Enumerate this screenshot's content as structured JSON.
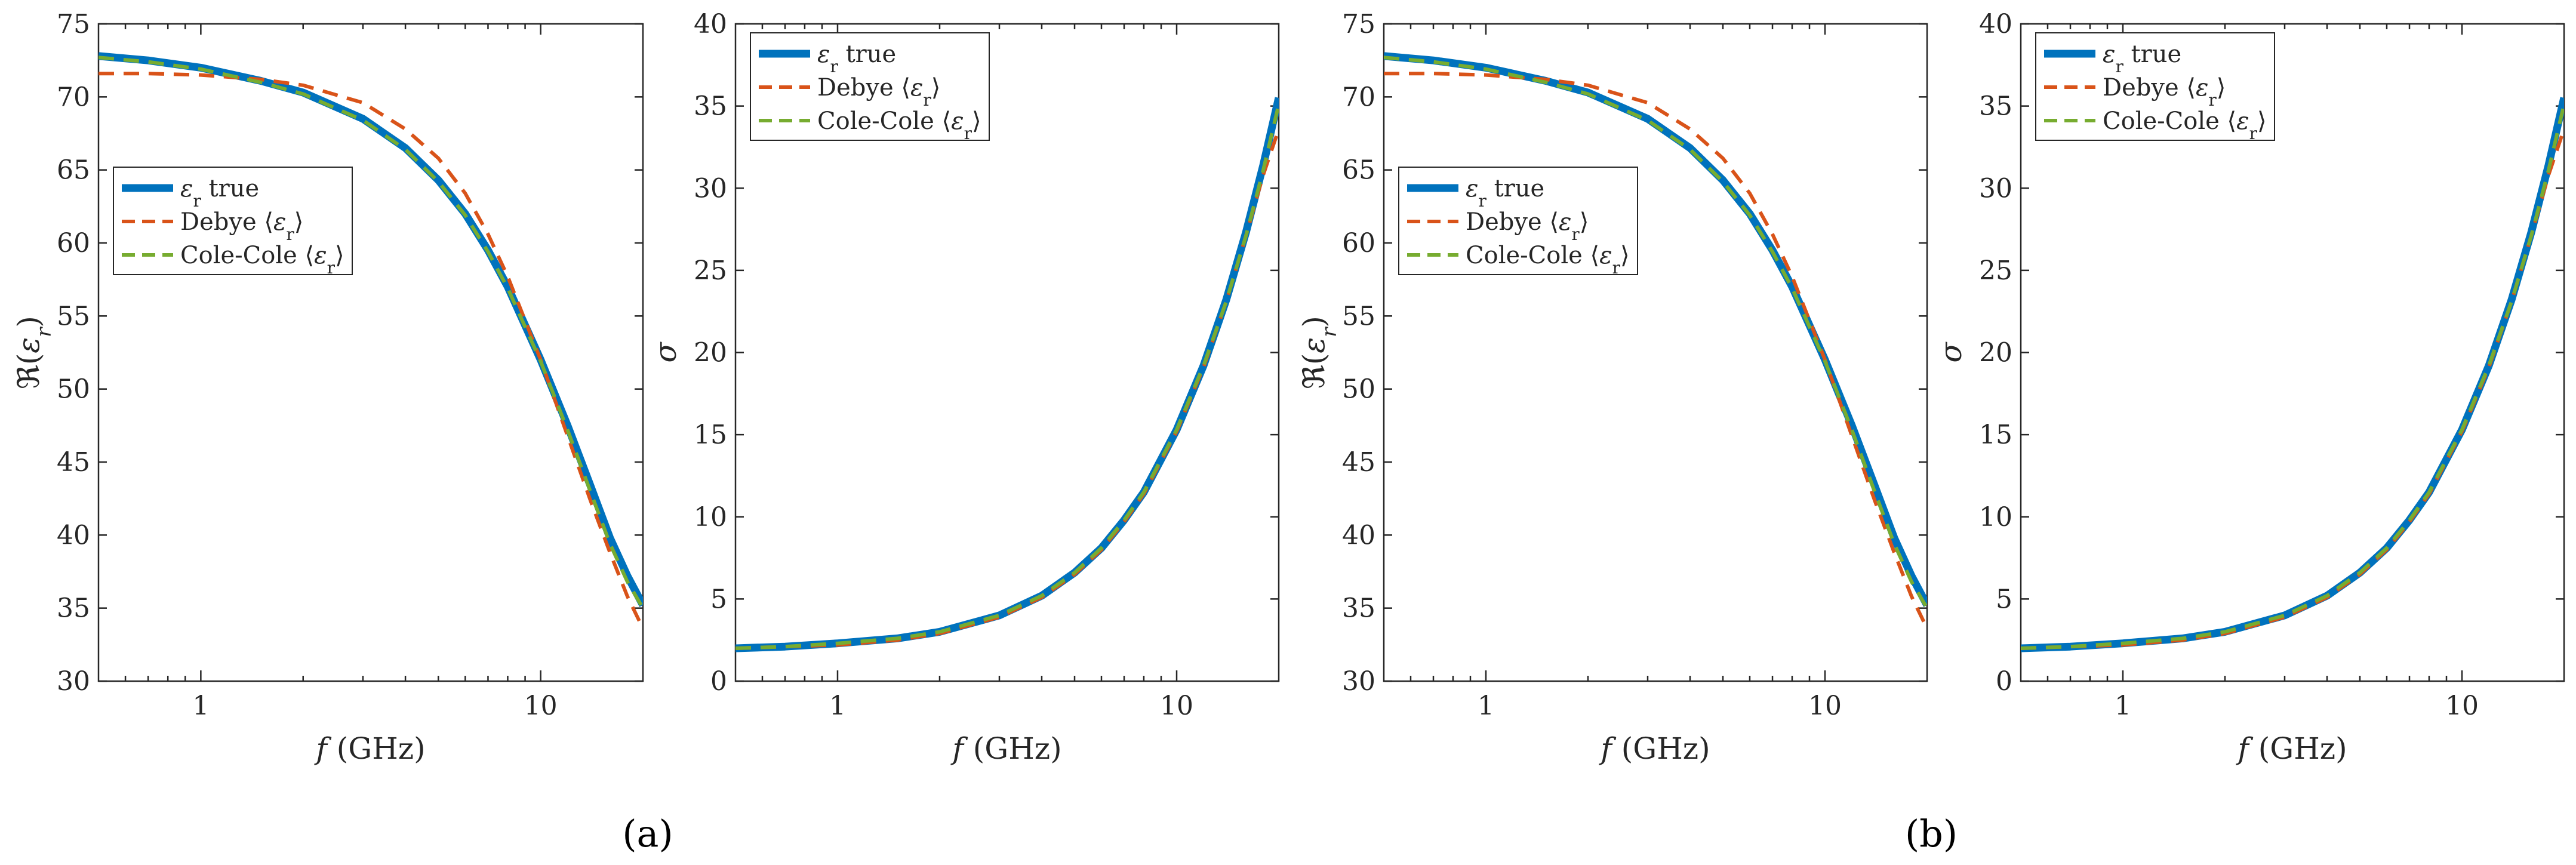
{
  "colors": {
    "true": "#0072BD",
    "debye": "#D95319",
    "cole": "#77AC30"
  },
  "panel_labels": [
    "(a)",
    "(b)"
  ],
  "chart_data": [
    {
      "type": "line",
      "panel": "a",
      "quantity": "eps",
      "xscale": "log",
      "xlim": [
        0.5,
        20
      ],
      "ylim": [
        30,
        75
      ],
      "xticks": [
        1,
        10
      ],
      "xtick_labels": [
        "1",
        "10"
      ],
      "yticks": [
        30,
        35,
        40,
        45,
        50,
        55,
        60,
        65,
        70,
        75
      ],
      "ytick_labels": [
        "30",
        "35",
        "40",
        "45",
        "50",
        "55",
        "60",
        "65",
        "70",
        "75"
      ],
      "xlabel": {
        "italic": "f",
        "rest": " (GHz)"
      },
      "ylabel": {
        "rest": "ℜ(",
        "italic": "ε",
        "sub": "r",
        "close": ")"
      },
      "legend": {
        "position": "middle-left",
        "entries": [
          "ε r true",
          "Debye ⟨ε r⟩",
          "Cole-Cole ⟨ε r⟩"
        ]
      },
      "x": [
        0.5,
        0.7,
        1,
        1.5,
        2,
        3,
        4,
        5,
        6,
        7,
        8,
        10,
        12,
        14,
        16,
        18,
        20
      ],
      "series": [
        {
          "name": "ε r true",
          "style": "true",
          "values": [
            72.8,
            72.5,
            72.0,
            71.1,
            70.3,
            68.5,
            66.5,
            64.3,
            62.0,
            59.5,
            57.0,
            52.0,
            47.5,
            43.4,
            39.8,
            37.2,
            35.2
          ]
        },
        {
          "name": "Debye ⟨ε r⟩",
          "style": "debye",
          "values": [
            71.6,
            71.6,
            71.5,
            71.2,
            70.8,
            69.6,
            67.8,
            65.8,
            63.4,
            60.6,
            57.7,
            52.0,
            46.8,
            42.4,
            38.8,
            35.8,
            33.6
          ]
        },
        {
          "name": "Cole-Cole ⟨ε r⟩",
          "style": "cole",
          "values": [
            72.7,
            72.4,
            71.9,
            71.0,
            70.2,
            68.4,
            66.4,
            64.2,
            61.9,
            59.4,
            56.9,
            51.9,
            47.2,
            43.0,
            39.4,
            36.8,
            35.0
          ]
        }
      ]
    },
    {
      "type": "line",
      "panel": "a",
      "quantity": "sigma",
      "xscale": "log",
      "xlim": [
        0.5,
        20
      ],
      "ylim": [
        0,
        40
      ],
      "xticks": [
        1,
        10
      ],
      "xtick_labels": [
        "1",
        "10"
      ],
      "yticks": [
        0,
        5,
        10,
        15,
        20,
        25,
        30,
        35,
        40
      ],
      "ytick_labels": [
        "0",
        "5",
        "10",
        "15",
        "20",
        "25",
        "30",
        "35",
        "40"
      ],
      "xlabel": {
        "italic": "f",
        "rest": " (GHz)"
      },
      "ylabel": {
        "italic": "σ"
      },
      "legend": {
        "position": "top-left",
        "entries": [
          "ε r true",
          "Debye ⟨ε r⟩",
          "Cole-Cole ⟨ε r⟩"
        ]
      },
      "x": [
        0.5,
        0.7,
        1,
        1.5,
        2,
        3,
        4,
        5,
        6,
        7,
        8,
        10,
        12,
        14,
        16,
        18,
        20
      ],
      "series": [
        {
          "name": "ε r true",
          "style": "true",
          "values": [
            2.0,
            2.1,
            2.3,
            2.6,
            3.0,
            4.0,
            5.2,
            6.6,
            8.1,
            9.8,
            11.5,
            15.3,
            19.2,
            23.2,
            27.3,
            31.4,
            35.5
          ]
        },
        {
          "name": "Debye ⟨ε r⟩",
          "style": "debye",
          "values": [
            2.0,
            2.1,
            2.2,
            2.5,
            2.9,
            3.9,
            5.1,
            6.5,
            8.0,
            9.7,
            11.4,
            15.2,
            19.1,
            23.1,
            27.1,
            30.8,
            33.6
          ]
        },
        {
          "name": "Cole-Cole ⟨ε r⟩",
          "style": "cole",
          "values": [
            2.0,
            2.1,
            2.3,
            2.6,
            3.0,
            4.0,
            5.2,
            6.6,
            8.1,
            9.8,
            11.5,
            15.3,
            19.2,
            23.1,
            27.1,
            31.1,
            35.1
          ]
        }
      ]
    },
    {
      "type": "line",
      "panel": "b",
      "quantity": "eps",
      "xscale": "log",
      "xlim": [
        0.5,
        20
      ],
      "ylim": [
        30,
        75
      ],
      "xticks": [
        1,
        10
      ],
      "xtick_labels": [
        "1",
        "10"
      ],
      "yticks": [
        30,
        35,
        40,
        45,
        50,
        55,
        60,
        65,
        70,
        75
      ],
      "ytick_labels": [
        "30",
        "35",
        "40",
        "45",
        "50",
        "55",
        "60",
        "65",
        "70",
        "75"
      ],
      "xlabel": {
        "italic": "f",
        "rest": " (GHz)"
      },
      "ylabel": {
        "rest": "ℜ(",
        "italic": "ε",
        "sub": "r",
        "close": ")"
      },
      "legend": {
        "position": "middle-left",
        "entries": [
          "ε r true",
          "Debye ⟨ε r⟩",
          "Cole-Cole ⟨ε r⟩"
        ]
      },
      "x": [
        0.5,
        0.7,
        1,
        1.5,
        2,
        3,
        4,
        5,
        6,
        7,
        8,
        10,
        12,
        14,
        16,
        18,
        20
      ],
      "series": [
        {
          "name": "ε r true",
          "style": "true",
          "values": [
            72.8,
            72.5,
            72.0,
            71.1,
            70.3,
            68.5,
            66.5,
            64.3,
            62.0,
            59.5,
            57.0,
            52.0,
            47.5,
            43.4,
            39.8,
            37.2,
            35.2
          ]
        },
        {
          "name": "Debye ⟨ε r⟩",
          "style": "debye",
          "values": [
            71.6,
            71.6,
            71.5,
            71.2,
            70.8,
            69.6,
            67.8,
            65.8,
            63.4,
            60.6,
            57.7,
            52.0,
            46.8,
            42.4,
            38.8,
            35.8,
            33.6
          ]
        },
        {
          "name": "Cole-Cole ⟨ε r⟩",
          "style": "cole",
          "values": [
            72.7,
            72.4,
            71.9,
            71.0,
            70.2,
            68.4,
            66.4,
            64.2,
            61.9,
            59.4,
            56.9,
            51.9,
            47.2,
            43.0,
            39.4,
            36.8,
            35.0
          ]
        }
      ]
    },
    {
      "type": "line",
      "panel": "b",
      "quantity": "sigma",
      "xscale": "log",
      "xlim": [
        0.5,
        20
      ],
      "ylim": [
        0,
        40
      ],
      "xticks": [
        1,
        10
      ],
      "xtick_labels": [
        "1",
        "10"
      ],
      "yticks": [
        0,
        5,
        10,
        15,
        20,
        25,
        30,
        35,
        40
      ],
      "ytick_labels": [
        "0",
        "5",
        "10",
        "15",
        "20",
        "25",
        "30",
        "35",
        "40"
      ],
      "xlabel": {
        "italic": "f",
        "rest": " (GHz)"
      },
      "ylabel": {
        "italic": "σ"
      },
      "legend": {
        "position": "top-left",
        "entries": [
          "ε r true",
          "Debye ⟨ε r⟩",
          "Cole-Cole ⟨ε r⟩"
        ]
      },
      "x": [
        0.5,
        0.7,
        1,
        1.5,
        2,
        3,
        4,
        5,
        6,
        7,
        8,
        10,
        12,
        14,
        16,
        18,
        20
      ],
      "series": [
        {
          "name": "ε r true",
          "style": "true",
          "values": [
            2.0,
            2.1,
            2.3,
            2.6,
            3.0,
            4.0,
            5.2,
            6.6,
            8.1,
            9.8,
            11.5,
            15.3,
            19.2,
            23.2,
            27.3,
            31.4,
            35.5
          ]
        },
        {
          "name": "Debye ⟨ε r⟩",
          "style": "debye",
          "values": [
            2.0,
            2.1,
            2.2,
            2.5,
            2.9,
            3.9,
            5.1,
            6.5,
            8.0,
            9.7,
            11.4,
            15.2,
            19.1,
            23.1,
            27.1,
            30.8,
            33.6
          ]
        },
        {
          "name": "Cole-Cole ⟨ε r⟩",
          "style": "cole",
          "values": [
            2.0,
            2.1,
            2.3,
            2.6,
            3.0,
            4.0,
            5.2,
            6.6,
            8.1,
            9.8,
            11.5,
            15.3,
            19.2,
            23.1,
            27.1,
            31.1,
            35.1
          ]
        }
      ]
    }
  ]
}
